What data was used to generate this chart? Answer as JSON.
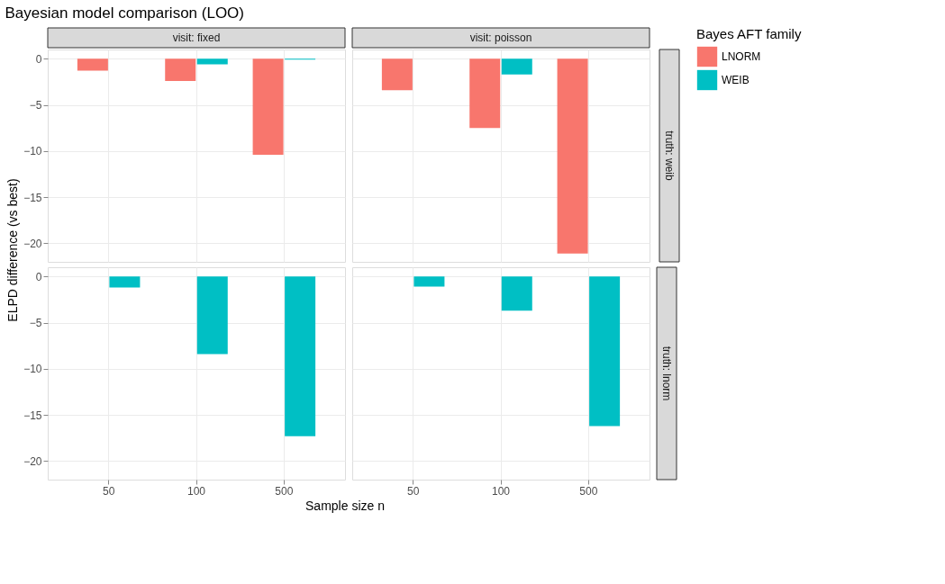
{
  "chart_data": [
    {
      "type": "bar",
      "title": "Bayesian model comparison (LOO)",
      "ylabel": "ELPD difference (vs best)",
      "legend_title": "Bayes AFT family",
      "legend": "right",
      "annotations": [
        "visit: fixed"
      ],
      "categories": [
        "50",
        "100",
        "500"
      ],
      "ylim": [
        -22,
        1
      ],
      "yticks": [
        0,
        -5,
        -10,
        -15,
        -20
      ],
      "grid": true,
      "tick_labels": "y",
      "series": [
        {
          "name": "LNORM",
          "color": "#f8766d",
          "values": [
            -1.3,
            -2.4,
            -10.4
          ]
        },
        {
          "name": "WEIB",
          "color": "#00bfc4",
          "values": [
            0,
            -0.6,
            -0.1
          ]
        }
      ]
    },
    {
      "type": "bar",
      "annotations": [
        "visit: poisson",
        "truth: weib"
      ],
      "categories": [
        "50",
        "100",
        "500"
      ],
      "ylim": [
        -22,
        1
      ],
      "yticks": [
        0,
        -5,
        -10,
        -15,
        -20
      ],
      "grid": true,
      "tick_labels": false,
      "series": [
        {
          "name": "LNORM",
          "color": "#f8766d",
          "values": [
            -3.4,
            -7.5,
            -21.1
          ]
        },
        {
          "name": "WEIB",
          "color": "#00bfc4",
          "values": [
            0,
            -1.7,
            0
          ]
        }
      ]
    },
    {
      "type": "bar",
      "xlabel": "Sample size n",
      "categories": [
        "50",
        "100",
        "500"
      ],
      "ylim": [
        -22,
        1
      ],
      "yticks": [
        0,
        -5,
        -10,
        -15,
        -20
      ],
      "grid": true,
      "series": [
        {
          "name": "LNORM",
          "color": "#f8766d",
          "values": [
            0,
            0,
            0
          ]
        },
        {
          "name": "WEIB",
          "color": "#00bfc4",
          "values": [
            -1.2,
            -8.4,
            -17.3
          ]
        }
      ]
    },
    {
      "type": "bar",
      "annotations": [
        "truth: lnorm"
      ],
      "categories": [
        "50",
        "100",
        "500"
      ],
      "ylim": [
        -22,
        1
      ],
      "yticks": [
        0,
        -5,
        -10,
        -15,
        -20
      ],
      "grid": true,
      "tick_labels": "x",
      "series": [
        {
          "name": "LNORM",
          "color": "#f8766d",
          "values": [
            0,
            0,
            0
          ]
        },
        {
          "name": "WEIB",
          "color": "#00bfc4",
          "values": [
            -1.1,
            -3.7,
            -16.2
          ]
        }
      ]
    }
  ]
}
